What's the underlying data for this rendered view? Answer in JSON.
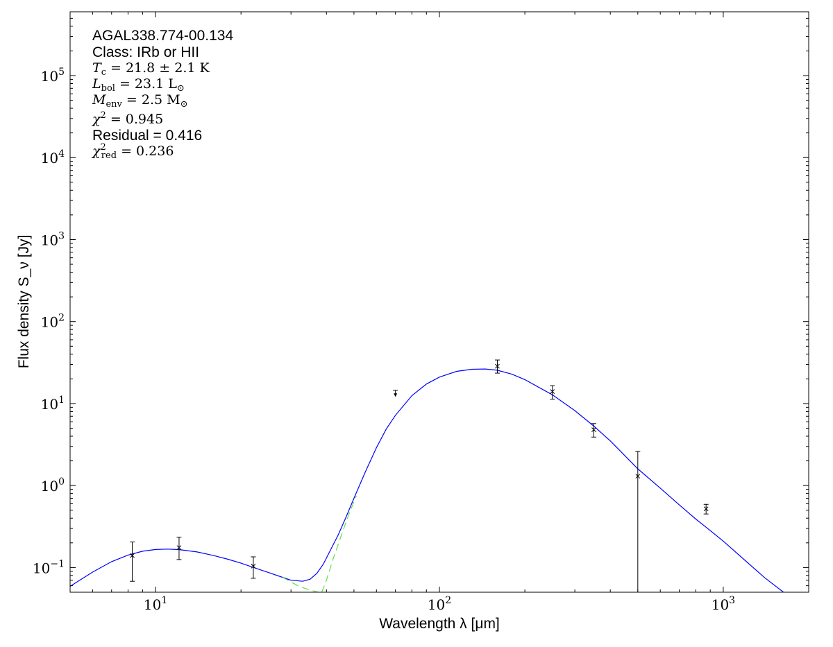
{
  "chart_data": {
    "type": "scatter",
    "title": "",
    "xlabel": "Wavelength λ [μm]",
    "ylabel": "Flux density S_ν [Jy]",
    "x_scale": "log",
    "y_scale": "log",
    "xlim": [
      5,
      2000
    ],
    "ylim": [
      0.05,
      600000
    ],
    "grid": false,
    "x_ticks": [
      {
        "base": "10",
        "exp": "1",
        "value": 10
      },
      {
        "base": "10",
        "exp": "2",
        "value": 100
      },
      {
        "base": "10",
        "exp": "3",
        "value": 1000
      }
    ],
    "y_ticks": [
      {
        "base": "10",
        "exp": "−1",
        "value": 0.1
      },
      {
        "base": "10",
        "exp": "0",
        "value": 1
      },
      {
        "base": "10",
        "exp": "1",
        "value": 10
      },
      {
        "base": "10",
        "exp": "2",
        "value": 100
      },
      {
        "base": "10",
        "exp": "3",
        "value": 1000
      },
      {
        "base": "10",
        "exp": "4",
        "value": 10000
      },
      {
        "base": "10",
        "exp": "5",
        "value": 100000
      }
    ],
    "annotations": {
      "source": "AGAL338.774-00.134",
      "class": "Class: IRb or HII",
      "tc": {
        "sym": "T",
        "sub": "c",
        "val": " = 21.8 ± 2.1 K"
      },
      "lbol": {
        "sym": "L",
        "sub": "bol",
        "val": " = 23.1 L",
        "val_sub": "⊙"
      },
      "menv": {
        "sym": "M",
        "sub": "env",
        "val": " = 2.5 M",
        "val_sub": "⊙"
      },
      "chi2": {
        "sym": "χ",
        "sup": "2",
        "val": " = 0.945"
      },
      "residual": "Residual = 0.416",
      "chi2red": {
        "sym": "χ",
        "sup": "2",
        "sub": "red",
        "val": " = 0.236"
      }
    },
    "measurements": [
      {
        "x": 8.28,
        "y": 0.14,
        "ylo": 0.068,
        "yhi": 0.205
      },
      {
        "x": 12.1,
        "y": 0.175,
        "ylo": 0.125,
        "yhi": 0.235
      },
      {
        "x": 22.1,
        "y": 0.104,
        "ylo": 0.074,
        "yhi": 0.135
      },
      {
        "x": 160,
        "y": 28.5,
        "ylo": 23.5,
        "yhi": 34.0
      },
      {
        "x": 250,
        "y": 14.0,
        "ylo": 11.3,
        "yhi": 16.5
      },
      {
        "x": 350,
        "y": 4.8,
        "ylo": 3.9,
        "yhi": 5.7
      },
      {
        "x": 500,
        "y": 1.3,
        "ylo": 0.05,
        "yhi": 2.6
      },
      {
        "x": 870,
        "y": 0.52,
        "ylo": 0.45,
        "yhi": 0.59
      }
    ],
    "upper_limits": [
      {
        "x": 70,
        "y": 14.5,
        "y_end": 12.3
      }
    ],
    "series": [
      {
        "color": "#0000ff",
        "style": "solid",
        "points": [
          [
            5,
            0.059
          ],
          [
            6,
            0.088
          ],
          [
            7,
            0.118
          ],
          [
            8,
            0.142
          ],
          [
            9,
            0.158
          ],
          [
            10,
            0.166
          ],
          [
            11,
            0.168
          ],
          [
            12,
            0.166
          ],
          [
            14,
            0.155
          ],
          [
            16,
            0.14
          ],
          [
            18,
            0.126
          ],
          [
            20,
            0.113
          ],
          [
            22,
            0.101
          ],
          [
            25,
            0.087
          ],
          [
            28,
            0.076
          ],
          [
            30,
            0.07
          ],
          [
            33,
            0.068
          ],
          [
            35,
            0.072
          ],
          [
            37,
            0.085
          ],
          [
            39,
            0.11
          ],
          [
            41,
            0.155
          ],
          [
            44,
            0.25
          ],
          [
            47,
            0.42
          ],
          [
            50,
            0.7
          ],
          [
            55,
            1.5
          ],
          [
            60,
            2.9
          ],
          [
            65,
            4.9
          ],
          [
            70,
            7.2
          ],
          [
            80,
            12.5
          ],
          [
            90,
            17.3
          ],
          [
            100,
            21.0
          ],
          [
            115,
            24.7
          ],
          [
            130,
            26.2
          ],
          [
            145,
            26.4
          ],
          [
            160,
            25.5
          ],
          [
            180,
            22.8
          ],
          [
            200,
            19.6
          ],
          [
            250,
            12.8
          ],
          [
            300,
            8.2
          ],
          [
            350,
            5.3
          ],
          [
            400,
            3.5
          ],
          [
            500,
            1.6
          ],
          [
            600,
            0.93
          ],
          [
            700,
            0.58
          ],
          [
            800,
            0.39
          ],
          [
            870,
            0.31
          ],
          [
            1000,
            0.21
          ],
          [
            1200,
            0.12
          ],
          [
            1400,
            0.075
          ],
          [
            1630,
            0.05
          ]
        ]
      },
      {
        "color": "#66dd44",
        "style": "dashed",
        "points": [
          [
            28,
            0.076
          ],
          [
            32,
            0.059
          ],
          [
            35,
            0.053
          ],
          [
            37.5,
            0.05
          ]
        ]
      },
      {
        "color": "#66dd44",
        "style": "dashed",
        "points": [
          [
            38.5,
            0.05
          ],
          [
            40,
            0.07
          ],
          [
            42,
            0.12
          ],
          [
            45,
            0.24
          ],
          [
            48,
            0.45
          ],
          [
            51,
            0.75
          ]
        ]
      }
    ]
  }
}
